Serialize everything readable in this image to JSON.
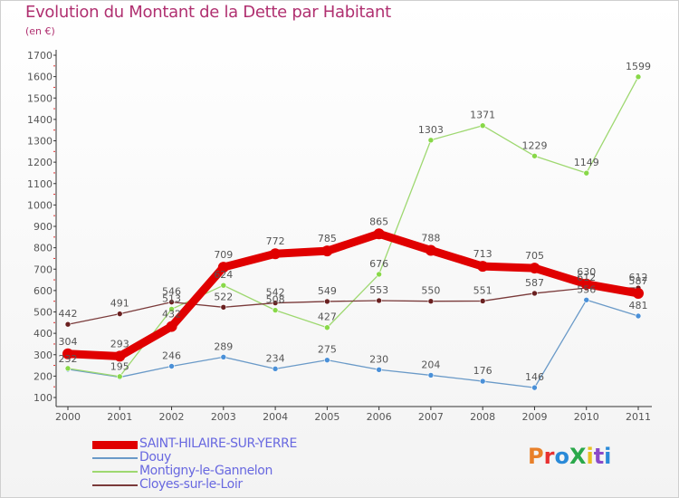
{
  "title": "Evolution du Montant de la Dette par Habitant",
  "subtitle": "(en €)",
  "logo": {
    "text": "ProXiti",
    "colors": [
      "#e8802a",
      "#e83030",
      "#2a8ad8",
      "#2aa84a",
      "#e8c020",
      "#8a4ac8",
      "#2a8ad8"
    ]
  },
  "chart_data": {
    "type": "line",
    "title": "Evolution du Montant de la Dette par Habitant",
    "subtitle": "(en €)",
    "xlabel": "",
    "ylabel": "",
    "x": [
      "2000",
      "2001",
      "2002",
      "2003",
      "2004",
      "2005",
      "2006",
      "2007",
      "2008",
      "2009",
      "2010",
      "2011"
    ],
    "ylim": [
      100,
      1700
    ],
    "yticks": [
      "100",
      "200",
      "300",
      "400",
      "500",
      "600",
      "700",
      "800",
      "900",
      "1000",
      "1100",
      "1200",
      "1300",
      "1400",
      "1500",
      "1600",
      "1700"
    ],
    "grid": false,
    "legend_position": "bottom-left",
    "series": [
      {
        "name": "SAINT-HILAIRE-SUR-YERRE",
        "color": "#e00000",
        "width": 9,
        "marker_fill": "#e00000",
        "values": [
          304,
          293,
          432,
          709,
          772,
          785,
          865,
          788,
          713,
          705,
          630,
          587
        ],
        "labels": [
          "304",
          "293",
          "432",
          "709",
          "772",
          "785",
          "865",
          "788",
          "713",
          "705",
          "630",
          "587"
        ]
      },
      {
        "name": "Douy",
        "color": "#6a9ac8",
        "width": 1.3,
        "marker_fill": "#4a90d8",
        "values": [
          232,
          195,
          246,
          289,
          234,
          275,
          230,
          204,
          176,
          146,
          556,
          481
        ],
        "labels": [
          "232",
          "195",
          "246",
          "289",
          "234",
          "275",
          "230",
          "204",
          "176",
          "146",
          "556",
          "481"
        ]
      },
      {
        "name": "Montigny-le-Gannelon",
        "color": "#9ed870",
        "width": 1.3,
        "marker_fill": "#88d848",
        "values": [
          236,
          198,
          513,
          624,
          508,
          427,
          676,
          1303,
          1371,
          1229,
          1149,
          1599
        ],
        "labels": [
          "",
          "",
          "513",
          "624",
          "508",
          "427",
          "676",
          "1303",
          "1371",
          "1229",
          "1149",
          "1599"
        ]
      },
      {
        "name": "Cloyes-sur-le-Loir",
        "color": "#7a3a3a",
        "width": 1.3,
        "marker_fill": "#6a2020",
        "values": [
          442,
          491,
          546,
          522,
          542,
          549,
          553,
          550,
          551,
          587,
          612,
          612
        ],
        "labels": [
          "442",
          "491",
          "546",
          "522",
          "542",
          "549",
          "553",
          "550",
          "551",
          "587",
          "612",
          "612"
        ]
      }
    ]
  }
}
